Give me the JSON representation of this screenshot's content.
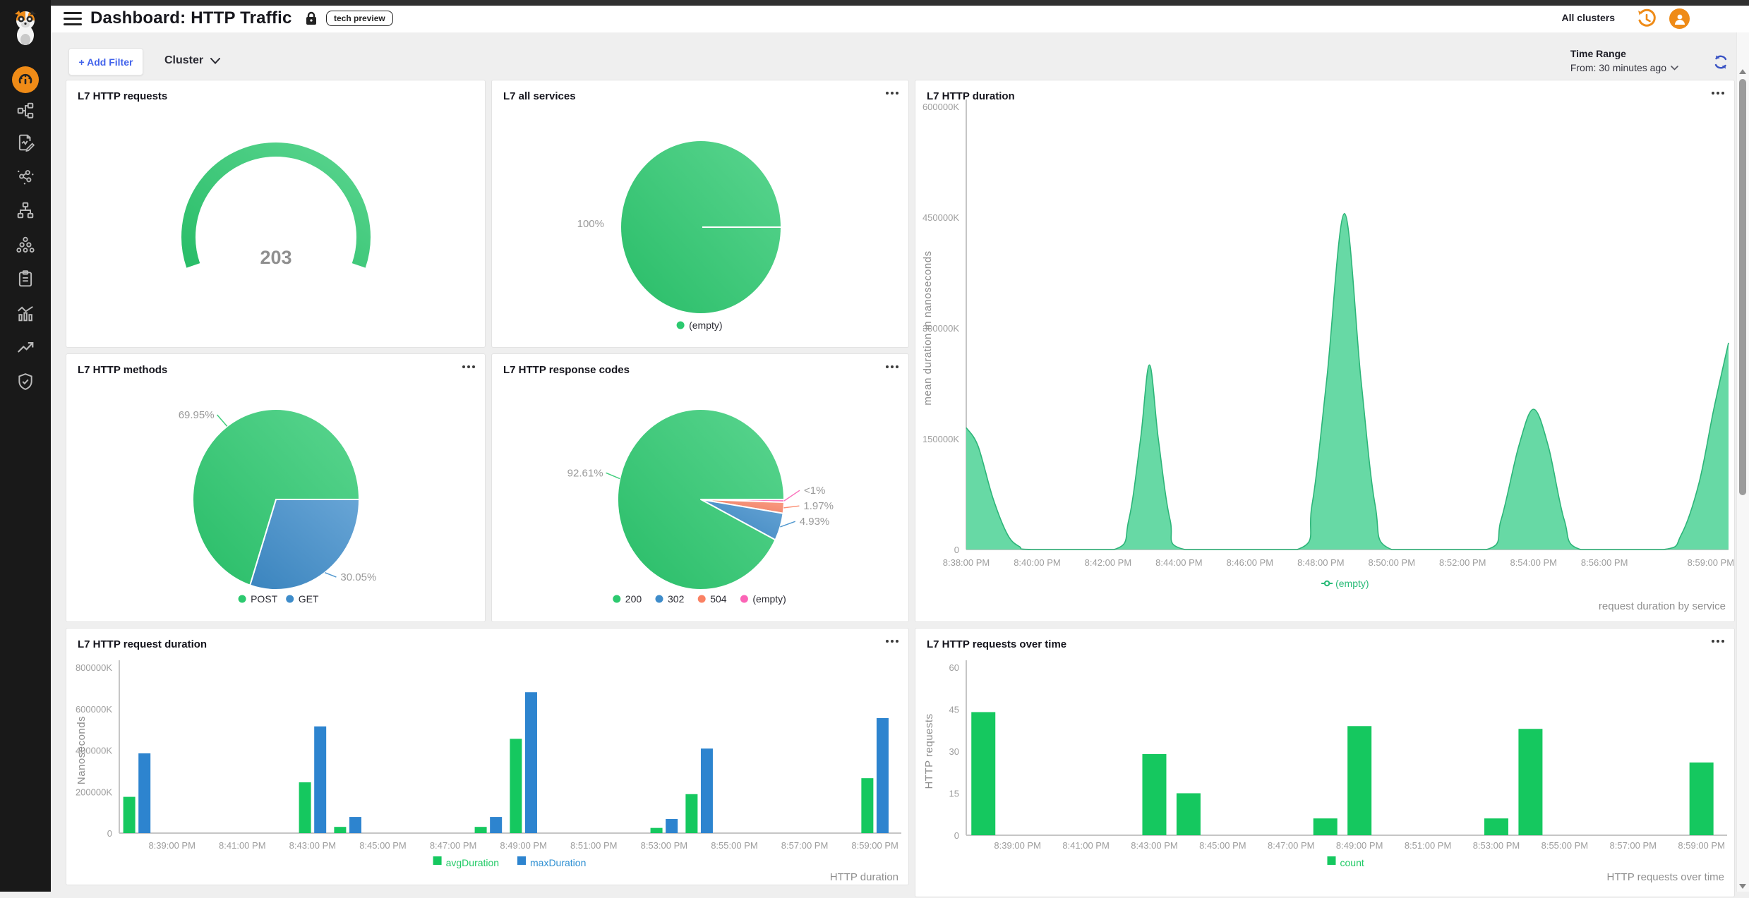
{
  "header": {
    "title": "Dashboard: HTTP Traffic",
    "badge": "tech preview",
    "all_clusters": "All clusters"
  },
  "filter_bar": {
    "add_filter_label": "+ Add Filter",
    "cluster_label": "Cluster",
    "time_range_label": "Time Range",
    "time_range_value": "From: 30 minutes ago"
  },
  "sidebar": {
    "active_index": 1,
    "items": [
      {
        "icon": "logo-mascot-icon"
      },
      {
        "icon": "dashboard-gauge-icon"
      },
      {
        "icon": "topology-icon"
      },
      {
        "icon": "flow-logs-icon"
      },
      {
        "icon": "service-map-icon"
      },
      {
        "icon": "sitemap-icon"
      },
      {
        "icon": "cluster-group-icon"
      },
      {
        "icon": "clipboard-icon"
      },
      {
        "icon": "metrics-icon"
      },
      {
        "icon": "trend-icon"
      },
      {
        "icon": "shield-check-icon"
      }
    ]
  },
  "colors": {
    "green": "#2cc96f",
    "blue": "#3e8cca",
    "salmon": "#fa8163",
    "pink": "#fb64b6",
    "bar_green": "#15c85f",
    "bar_blue": "#2d84cf",
    "area_fill": "#5fd7a0",
    "area_stroke": "#2db579",
    "orange": "#ef8b17",
    "accent_blue": "#4263eb"
  },
  "chart_data": [
    {
      "id": "l7-http-requests",
      "type": "gauge",
      "title": "L7 HTTP requests",
      "value": "203",
      "color": "#2cc96f"
    },
    {
      "id": "l7-all-services",
      "type": "pie",
      "title": "L7 all services",
      "slices": [
        {
          "label": "(empty)",
          "value": 100,
          "pct_label": "100%",
          "color": "#2cc96f",
          "leader": false
        }
      ],
      "legend": [
        {
          "label": "(empty)",
          "color": "#2cc96f",
          "marker": "dot",
          "labelColor": "#2d2d35"
        }
      ]
    },
    {
      "id": "l7-http-duration",
      "type": "area",
      "title": "L7 HTTP duration",
      "ylabel": "mean duration in nanoseconds",
      "caption": "request duration by service",
      "ylim": [
        0,
        600000
      ],
      "yticks": [
        {
          "label": "0",
          "v": 0
        },
        {
          "label": "150000K",
          "v": 150000
        },
        {
          "label": "300000K",
          "v": 300000
        },
        {
          "label": "450000K",
          "v": 450000
        },
        {
          "label": "600000K",
          "v": 600000
        }
      ],
      "xlim": [
        0,
        1290
      ],
      "xticks": [
        {
          "label": "8:38:00 PM",
          "t": 0
        },
        {
          "label": "8:40:00 PM",
          "t": 120
        },
        {
          "label": "8:42:00 PM",
          "t": 240
        },
        {
          "label": "8:44:00 PM",
          "t": 360
        },
        {
          "label": "8:46:00 PM",
          "t": 480
        },
        {
          "label": "8:48:00 PM",
          "t": 600
        },
        {
          "label": "8:50:00 PM",
          "t": 720
        },
        {
          "label": "8:52:00 PM",
          "t": 840
        },
        {
          "label": "8:54:00 PM",
          "t": 960
        },
        {
          "label": "8:56:00 PM",
          "t": 1080
        },
        {
          "label": "8:59:00 PM",
          "t": 1260
        }
      ],
      "series": [
        {
          "name": "(empty)",
          "color": "#2db579",
          "fill": "#5fd7a0",
          "points": [
            [
              0,
              165000
            ],
            [
              20,
              140000
            ],
            [
              45,
              70000
            ],
            [
              70,
              20000
            ],
            [
              90,
              4000
            ],
            [
              110,
              0
            ],
            [
              250,
              0
            ],
            [
              275,
              40000
            ],
            [
              295,
              150000
            ],
            [
              310,
              250000
            ],
            [
              325,
              150000
            ],
            [
              345,
              40000
            ],
            [
              370,
              0
            ],
            [
              560,
              0
            ],
            [
              585,
              60000
            ],
            [
              610,
              230000
            ],
            [
              640,
              455000
            ],
            [
              668,
              230000
            ],
            [
              692,
              60000
            ],
            [
              720,
              0
            ],
            [
              880,
              0
            ],
            [
              905,
              40000
            ],
            [
              935,
              140000
            ],
            [
              960,
              190000
            ],
            [
              985,
              140000
            ],
            [
              1012,
              40000
            ],
            [
              1040,
              0
            ],
            [
              1180,
              0
            ],
            [
              1210,
              20000
            ],
            [
              1240,
              90000
            ],
            [
              1265,
              190000
            ],
            [
              1290,
              280000
            ]
          ]
        }
      ],
      "legend": [
        {
          "label": "(empty)",
          "color": "#2abb78",
          "marker": "line",
          "labelColor": "#2abb78"
        }
      ]
    },
    {
      "id": "l7-http-methods",
      "type": "pie",
      "title": "L7 HTTP methods",
      "slices": [
        {
          "label": "GET",
          "value": 30.05,
          "pct_label": "30.05%",
          "color": "#3e8cca"
        },
        {
          "label": "POST",
          "value": 69.95,
          "pct_label": "69.95%",
          "color": "#2cc96f"
        }
      ],
      "legend": [
        {
          "label": "POST",
          "color": "#2cc96f",
          "marker": "dot",
          "labelColor": "#2d2d35"
        },
        {
          "label": "GET",
          "color": "#3e8cca",
          "marker": "dot",
          "labelColor": "#2d2d35"
        }
      ]
    },
    {
      "id": "l7-http-response-codes",
      "type": "pie",
      "title": "L7 HTTP response codes",
      "slices": [
        {
          "label": "(empty)",
          "value": 0.49,
          "pct_label": "<1%",
          "color": "#fb64b6"
        },
        {
          "label": "504",
          "value": 1.97,
          "pct_label": "1.97%",
          "color": "#fa8163"
        },
        {
          "label": "302",
          "value": 4.93,
          "pct_label": "4.93%",
          "color": "#3e8cca"
        },
        {
          "label": "200",
          "value": 92.61,
          "pct_label": "92.61%",
          "color": "#2cc96f"
        }
      ],
      "legend": [
        {
          "label": "200",
          "color": "#2cc96f",
          "marker": "dot",
          "labelColor": "#2d2d35"
        },
        {
          "label": "302",
          "color": "#3e8cca",
          "marker": "dot",
          "labelColor": "#2d2d35"
        },
        {
          "label": "504",
          "color": "#fa8163",
          "marker": "dot",
          "labelColor": "#2d2d35"
        },
        {
          "label": "(empty)",
          "color": "#fb64b6",
          "marker": "dot",
          "labelColor": "#2d2d35"
        }
      ]
    },
    {
      "id": "l7-http-request-duration",
      "type": "bar",
      "title": "L7 HTTP request duration",
      "ylabel": "Nanoseconds",
      "caption": "HTTP duration",
      "ylim": [
        0,
        800000
      ],
      "yticks": [
        {
          "label": "0",
          "v": 0
        },
        {
          "label": "200000K",
          "v": 200000
        },
        {
          "label": "400000K",
          "v": 400000
        },
        {
          "label": "600000K",
          "v": 600000
        },
        {
          "label": "800000K",
          "v": 800000
        }
      ],
      "xlim": [
        -30,
        1305
      ],
      "xticks": [
        {
          "label": "8:39:00 PM",
          "t": 60
        },
        {
          "label": "8:41:00 PM",
          "t": 180
        },
        {
          "label": "8:43:00 PM",
          "t": 300
        },
        {
          "label": "8:45:00 PM",
          "t": 420
        },
        {
          "label": "8:47:00 PM",
          "t": 540
        },
        {
          "label": "8:49:00 PM",
          "t": 660
        },
        {
          "label": "8:51:00 PM",
          "t": 780
        },
        {
          "label": "8:53:00 PM",
          "t": 900
        },
        {
          "label": "8:55:00 PM",
          "t": 1020
        },
        {
          "label": "8:57:00 PM",
          "t": 1140
        },
        {
          "label": "8:59:00 PM",
          "t": 1260
        }
      ],
      "categories_t": [
        0,
        300,
        360,
        600,
        660,
        900,
        960,
        1260
      ],
      "categories": [
        "8:38 PM",
        "8:43 PM",
        "8:44 PM",
        "8:48 PM",
        "8:49 PM",
        "8:53 PM",
        "8:54 PM",
        "8:59 PM"
      ],
      "series": [
        {
          "name": "avgDuration",
          "offset": -13,
          "color": "#15c85f",
          "values": [
            175000,
            245000,
            30000,
            30000,
            455000,
            25000,
            188000,
            265000
          ]
        },
        {
          "name": "maxDuration",
          "offset": 13,
          "color": "#2d84cf",
          "values": [
            385000,
            515000,
            78000,
            78000,
            680000,
            68000,
            408000,
            555000
          ]
        }
      ],
      "legend": [
        {
          "label": "avgDuration",
          "color": "#15c85f",
          "marker": "square",
          "labelColor": "#21ca66"
        },
        {
          "label": "maxDuration",
          "color": "#2d84cf",
          "marker": "square",
          "labelColor": "#2d8fd2"
        }
      ]
    },
    {
      "id": "l7-http-requests-over-time",
      "type": "bar",
      "title": "L7 HTTP requests over time",
      "ylabel": "HTTP requests",
      "caption": "HTTP requests over time",
      "ylim": [
        0,
        60
      ],
      "yticks": [
        {
          "label": "0",
          "v": 0
        },
        {
          "label": "15",
          "v": 15
        },
        {
          "label": "30",
          "v": 30
        },
        {
          "label": "45",
          "v": 45
        },
        {
          "label": "60",
          "v": 60
        }
      ],
      "xlim": [
        -30,
        1305
      ],
      "xticks": [
        {
          "label": "8:39:00 PM",
          "t": 60
        },
        {
          "label": "8:41:00 PM",
          "t": 180
        },
        {
          "label": "8:43:00 PM",
          "t": 300
        },
        {
          "label": "8:45:00 PM",
          "t": 420
        },
        {
          "label": "8:47:00 PM",
          "t": 540
        },
        {
          "label": "8:49:00 PM",
          "t": 660
        },
        {
          "label": "8:51:00 PM",
          "t": 780
        },
        {
          "label": "8:53:00 PM",
          "t": 900
        },
        {
          "label": "8:55:00 PM",
          "t": 1020
        },
        {
          "label": "8:57:00 PM",
          "t": 1140
        },
        {
          "label": "8:59:00 PM",
          "t": 1260
        }
      ],
      "categories_t": [
        0,
        300,
        360,
        600,
        660,
        900,
        960,
        1260
      ],
      "categories": [
        "8:38 PM",
        "8:43 PM",
        "8:44 PM",
        "8:48 PM",
        "8:49 PM",
        "8:53 PM",
        "8:54 PM",
        "8:59 PM"
      ],
      "series": [
        {
          "name": "count",
          "offset": 0,
          "color": "#15c85f",
          "values": [
            44,
            29,
            15,
            6,
            39,
            6,
            38,
            26
          ]
        }
      ],
      "legend": [
        {
          "label": "count",
          "color": "#15c85f",
          "marker": "square",
          "labelColor": "#21ca66"
        }
      ]
    }
  ]
}
